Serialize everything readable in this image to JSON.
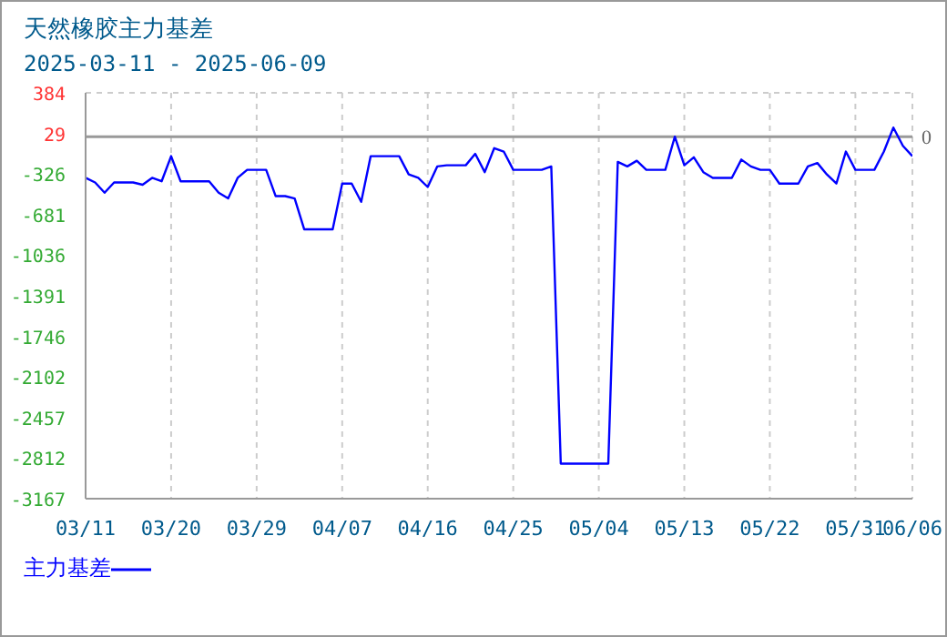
{
  "chart_data": {
    "type": "line",
    "title": "天然橡胶主力基差",
    "subtitle": "2025-03-11 - 2025-06-09",
    "x": [
      "2025-03-11",
      "2025-03-12",
      "2025-03-13",
      "2025-03-14",
      "2025-03-16",
      "2025-03-17",
      "2025-03-18",
      "2025-03-19",
      "2025-03-20",
      "2025-03-21",
      "2025-03-24",
      "2025-03-25",
      "2025-03-26",
      "2025-03-27",
      "2025-03-28",
      "2025-03-30",
      "2025-03-31",
      "2025-04-01",
      "2025-04-02",
      "2025-04-03",
      "2025-04-06",
      "2025-04-07",
      "2025-04-08",
      "2025-04-09",
      "2025-04-10",
      "2025-04-13",
      "2025-04-14",
      "2025-04-15",
      "2025-04-16",
      "2025-04-17",
      "2025-04-18",
      "2025-04-20",
      "2025-04-21",
      "2025-04-22",
      "2025-04-23",
      "2025-04-24",
      "2025-04-25",
      "2025-04-28",
      "2025-04-29",
      "2025-04-30",
      "2025-05-05",
      "2025-05-06",
      "2025-05-07",
      "2025-05-08",
      "2025-05-09",
      "2025-05-11",
      "2025-05-12",
      "2025-05-13",
      "2025-05-14",
      "2025-05-15",
      "2025-05-16",
      "2025-05-18",
      "2025-05-19",
      "2025-05-20",
      "2025-05-21",
      "2025-05-22",
      "2025-05-23",
      "2025-05-25",
      "2025-05-26",
      "2025-05-27",
      "2025-05-28",
      "2025-05-29",
      "2025-05-30",
      "2025-05-31",
      "2025-06-02",
      "2025-06-03",
      "2025-06-04",
      "2025-06-05",
      "2025-06-06"
    ],
    "series": [
      {
        "name": "主力基差",
        "color": "#0000ff",
        "values": [
          -360,
          -400,
          -490,
          -400,
          -400,
          -420,
          -360,
          -390,
          -170,
          -390,
          -390,
          -490,
          -540,
          -360,
          -290,
          -290,
          -520,
          -520,
          -540,
          -810,
          -810,
          -410,
          -410,
          -570,
          -170,
          -170,
          -330,
          -360,
          -440,
          -260,
          -250,
          -250,
          -150,
          -310,
          -100,
          -130,
          -290,
          -290,
          -260,
          -2860,
          -2860,
          -220,
          -260,
          -210,
          -290,
          -290,
          0,
          -250,
          -180,
          -310,
          -360,
          -360,
          -200,
          -260,
          -290,
          -290,
          -410,
          -410,
          -260,
          -230,
          -330,
          -410,
          -130,
          -290,
          -290,
          -130,
          80,
          -80,
          -170
        ]
      }
    ],
    "xlim": [
      "2025-03-11",
      "2025-06-06"
    ],
    "xticks": [
      {
        "value": "2025-03-11",
        "label": "03/11"
      },
      {
        "value": "2025-03-20",
        "label": "03/20"
      },
      {
        "value": "2025-03-29",
        "label": "03/29"
      },
      {
        "value": "2025-04-07",
        "label": "04/07"
      },
      {
        "value": "2025-04-16",
        "label": "04/16"
      },
      {
        "value": "2025-04-25",
        "label": "04/25"
      },
      {
        "value": "2025-05-04",
        "label": "05/04"
      },
      {
        "value": "2025-05-13",
        "label": "05/13"
      },
      {
        "value": "2025-05-22",
        "label": "05/22"
      },
      {
        "value": "2025-05-31",
        "label": "05/31"
      },
      {
        "value": "2025-06-06",
        "label": "06/06"
      }
    ],
    "ylim": [
      -3167,
      384
    ],
    "yticks": [
      -3167,
      -2812,
      -2457,
      -2102,
      -1746,
      -1391,
      -1036,
      -681,
      -326,
      29,
      384
    ],
    "ref_lines": [
      {
        "axis": "y",
        "value": 0,
        "label": "0",
        "color": "#999999"
      }
    ],
    "grid": true,
    "legend": "bottom left",
    "marker": "none",
    "line_style": "solid"
  }
}
